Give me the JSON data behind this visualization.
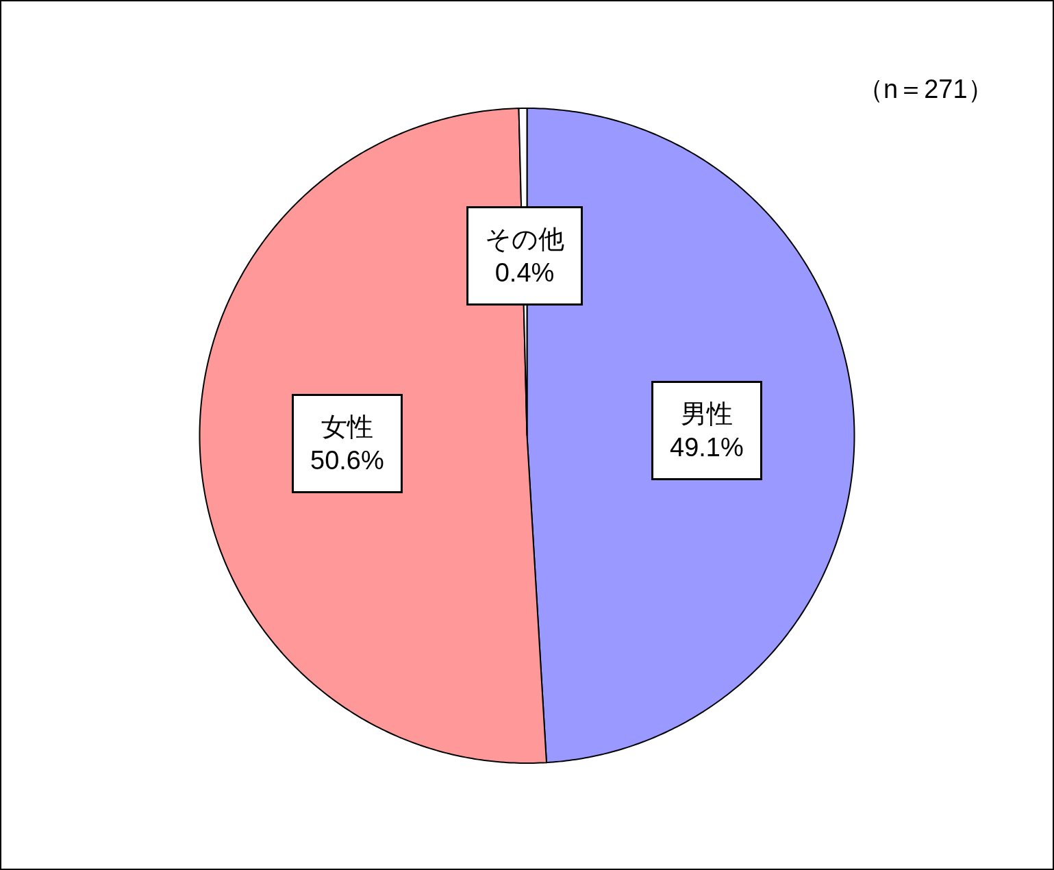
{
  "chart_data": {
    "type": "pie",
    "categories": [
      "男性",
      "女性",
      "その他"
    ],
    "values": [
      49.1,
      50.6,
      0.4
    ],
    "colors": [
      "#9999ff",
      "#ff9999",
      "#ffffff"
    ],
    "value_labels": [
      "49.1%",
      "50.6%",
      "0.4%"
    ],
    "annotations": [
      "（n＝271）"
    ]
  }
}
